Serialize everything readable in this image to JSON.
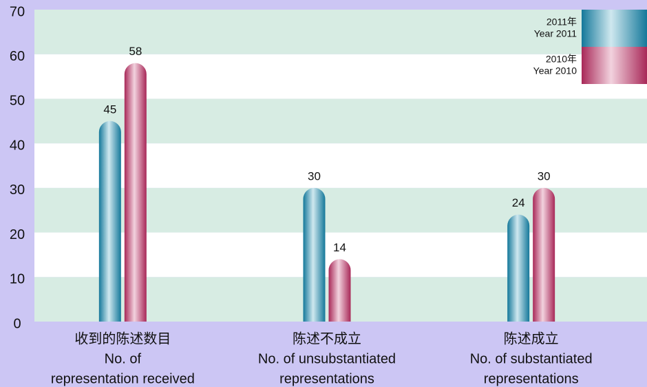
{
  "chart_data": {
    "type": "bar",
    "categories": [
      [
        "收到的陈述数目",
        "No. of",
        "representation received"
      ],
      [
        "陈述不成立",
        "No. of unsubstantiated",
        "representations"
      ],
      [
        "陈述成立",
        "No. of substantiated",
        "representations"
      ]
    ],
    "series": [
      {
        "name": [
          "2011年",
          "Year 2011"
        ],
        "color": "#1b80a2",
        "values": [
          45,
          30,
          24
        ]
      },
      {
        "name": [
          "2010年",
          "Year 2010"
        ],
        "color": "#b2305f",
        "values": [
          58,
          14,
          30
        ]
      }
    ],
    "ylim": [
      0,
      70
    ],
    "yticks": [
      0,
      10,
      20,
      30,
      40,
      50,
      60,
      70
    ],
    "grid": true,
    "legend": "upper right"
  }
}
